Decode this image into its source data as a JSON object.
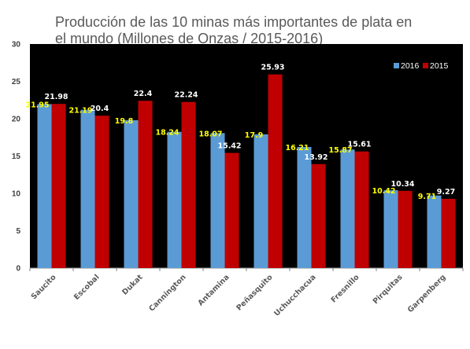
{
  "chart_data": {
    "type": "bar",
    "title": "Producción de las 10 minas más importantes de plata en el mundo (Millones de Onzas / 2015-2016)",
    "title_lines": [
      "Producción de las 10 minas más importantes de plata en",
      "el mundo (Millones de Onzas / 2015-2016)"
    ],
    "categories": [
      "Saucito",
      "Escobal",
      "Dukat",
      "Cannington",
      "Antamina",
      "Peñasquito",
      "Uchucchacua",
      "Fresnillo",
      "Pirquitas",
      "Garpenberg"
    ],
    "series": [
      {
        "name": "2016",
        "color": "#5b9bd5",
        "label_color": "#ffff00",
        "values": [
          21.95,
          21.19,
          19.8,
          18.24,
          18.07,
          17.9,
          16.21,
          15.87,
          10.42,
          9.71
        ],
        "value_labels": [
          "21.95",
          "21.19",
          "19.8",
          "18.24",
          "18.07",
          "17.9",
          "16.21",
          "15.87",
          "10.42",
          "9.71"
        ]
      },
      {
        "name": "2015",
        "color": "#c00000",
        "label_color": "#ffffff",
        "values": [
          21.98,
          20.4,
          22.4,
          22.24,
          15.42,
          25.93,
          13.92,
          15.61,
          10.34,
          9.27
        ],
        "value_labels": [
          "21.98",
          "20.4",
          "22.4",
          "22.24",
          "15.42",
          "25.93",
          "13.92",
          "15.61",
          "10.34",
          "9.27"
        ]
      }
    ],
    "ylim": [
      0,
      30
    ],
    "yticks": [
      0,
      5,
      10,
      15,
      20,
      25,
      30
    ],
    "ytick_labels": [
      "0",
      "5",
      "10",
      "15",
      "20",
      "25",
      "30"
    ],
    "xlabel": "",
    "ylabel": "",
    "grid": false,
    "legend_position": "top-right",
    "plot_background": "#000000",
    "page_background": "#ffffff"
  }
}
